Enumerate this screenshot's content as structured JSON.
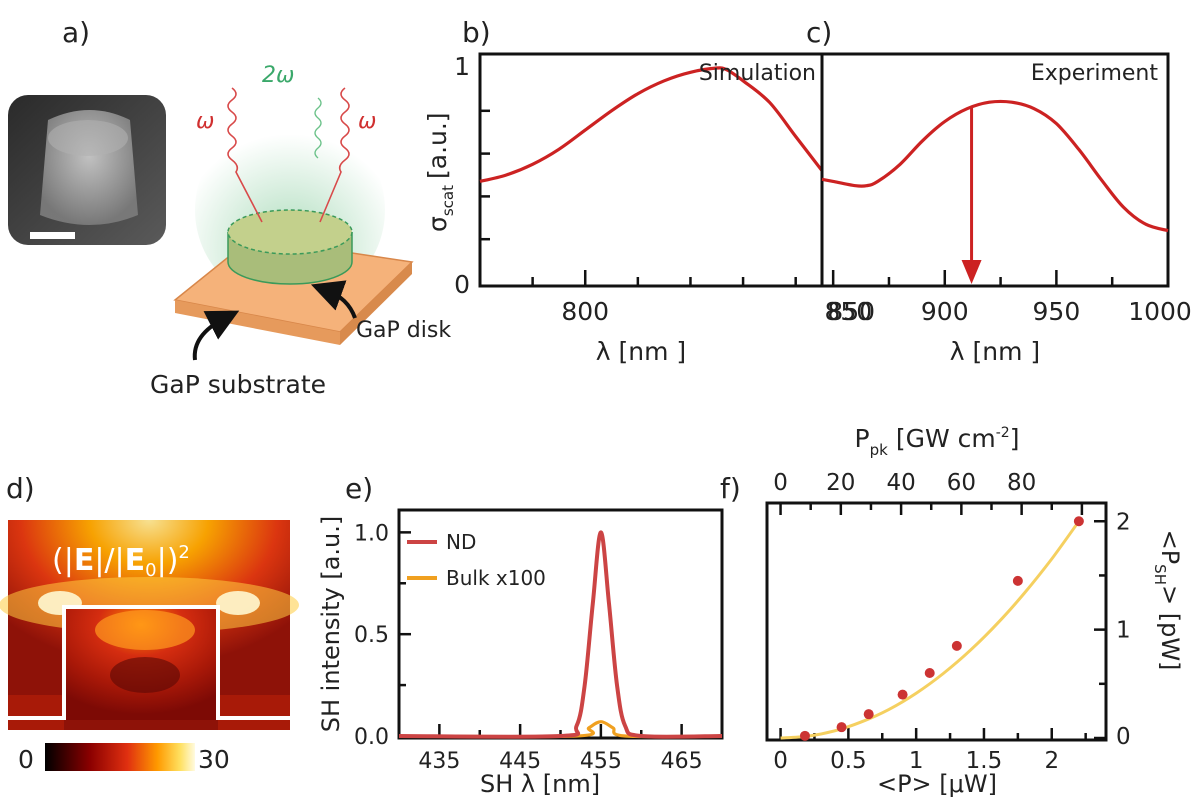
{
  "colors": {
    "curve_red": "#cc2222",
    "nd_line": "#cc4444",
    "bulk_line": "#f0a020",
    "fit_line": "#f5d060",
    "points": "#cc3333",
    "substrate": "#f5b27a",
    "disk": "#b8c98a",
    "glow": "#9ed6b0"
  },
  "panel_a": {
    "label": "a)",
    "omega_left": "ω",
    "omega_center": "2ω",
    "omega_right": "ω",
    "disk_label": "GaP disk",
    "substrate_label": "GaP substrate",
    "icons": [
      "sem-image",
      "disk-schematic"
    ]
  },
  "panel_d": {
    "label": "d)",
    "field_label": "(|E|/|E0|)²",
    "field_label_main": "(|",
    "field_E": "E",
    "field_mid": "|/|",
    "field_E0": "E",
    "field_sub0": "0",
    "field_close": "|)",
    "field_sup": "2",
    "colorbar_min": "0",
    "colorbar_max": "30"
  },
  "chart_data": [
    {
      "id": "b",
      "label": "b)",
      "type": "line",
      "title": "Simulation",
      "xlabel": "λ  [nm ]",
      "ylabel": "σscat [a.u.]",
      "ylabel_main": "σ",
      "ylabel_sub": "scat",
      "ylabel_unit": "[a.u.]",
      "xlim": [
        780,
        845
      ],
      "ylim": [
        0,
        1
      ],
      "xticks": [
        "800",
        "850"
      ],
      "xtick_values": [
        800,
        850
      ],
      "yticks": [
        "0",
        "1"
      ],
      "ytick_values": [
        0,
        1
      ],
      "series": [
        {
          "x": [
            780,
            785,
            790,
            795,
            800,
            805,
            810,
            815,
            820,
            825,
            827,
            830,
            835,
            840,
            845
          ],
          "y": [
            0.47,
            0.5,
            0.55,
            0.62,
            0.71,
            0.8,
            0.88,
            0.94,
            0.98,
            1.0,
            0.99,
            0.94,
            0.84,
            0.68,
            0.52
          ]
        }
      ]
    },
    {
      "id": "c",
      "label": "c)",
      "type": "line",
      "title": "Experiment",
      "xlabel": "λ  [nm ]",
      "xlim": [
        845,
        1000
      ],
      "ylim": [
        0,
        1
      ],
      "xticks": [
        "850",
        "900",
        "950",
        "1000"
      ],
      "xtick_values": [
        850,
        900,
        950,
        1000
      ],
      "arrow_x": 912,
      "series": [
        {
          "x": [
            845,
            850,
            860,
            865,
            870,
            880,
            890,
            900,
            910,
            920,
            930,
            940,
            950,
            960,
            970,
            980,
            990,
            1000
          ],
          "y": [
            0.48,
            0.47,
            0.45,
            0.45,
            0.47,
            0.55,
            0.66,
            0.75,
            0.81,
            0.84,
            0.84,
            0.81,
            0.74,
            0.62,
            0.48,
            0.35,
            0.27,
            0.24
          ]
        }
      ]
    },
    {
      "id": "e",
      "label": "e)",
      "type": "line",
      "xlabel": "SH λ [nm]",
      "ylabel": "SH intensity [a.u.]",
      "xlim": [
        430,
        470
      ],
      "ylim": [
        0,
        1.1
      ],
      "xticks": [
        "435",
        "445",
        "455",
        "465"
      ],
      "xtick_values": [
        435,
        445,
        455,
        465
      ],
      "yticks": [
        "0.0",
        "0.5",
        "1.0"
      ],
      "ytick_values": [
        0,
        0.5,
        1.0
      ],
      "series": [
        {
          "name": "ND",
          "x": [
            430,
            450,
            452,
            453,
            454,
            455,
            456,
            457,
            458,
            460,
            470
          ],
          "y": [
            0,
            0,
            0.05,
            0.25,
            0.65,
            1.0,
            0.65,
            0.25,
            0.05,
            0,
            0
          ]
        },
        {
          "name": "Bulk x100",
          "x": [
            430,
            452,
            453.5,
            455,
            456.5,
            458,
            470
          ],
          "y": [
            0,
            0,
            0.04,
            0.07,
            0.04,
            0,
            0
          ]
        }
      ]
    },
    {
      "id": "f",
      "label": "f)",
      "type": "scatter",
      "xlabel": "<P> [μW]",
      "ylabel": "<PSH> [pW]",
      "ylabel_right_main": "<P",
      "ylabel_right_sub": "SH",
      "ylabel_right_rest": "> [pW]",
      "top_xlabel_main": "P",
      "top_xlabel_sub": "pk",
      "top_xlabel_rest": "[GW cm",
      "top_xlabel_sup": "-2",
      "top_xlabel_close": "]",
      "xlim": [
        -0.1,
        2.4
      ],
      "ylim": [
        0,
        2.15
      ],
      "xticks": [
        "0",
        "0.5",
        "1",
        "1.5",
        "2"
      ],
      "xtick_values": [
        0,
        0.5,
        1,
        1.5,
        2
      ],
      "top_xlim": [
        -4.5,
        108
      ],
      "top_xticks": [
        "0",
        "20",
        "40",
        "60",
        "80"
      ],
      "top_xtick_values": [
        0,
        20,
        40,
        60,
        80
      ],
      "yticks": [
        "0",
        "1",
        "2"
      ],
      "ytick_values": [
        0,
        1,
        2
      ],
      "series": [
        {
          "name": "data",
          "x": [
            0.18,
            0.45,
            0.65,
            0.9,
            1.1,
            1.3,
            1.75,
            2.2
          ],
          "y": [
            0.02,
            0.1,
            0.22,
            0.4,
            0.6,
            0.85,
            1.45,
            2.0
          ]
        },
        {
          "name": "fit",
          "x": [
            0.0,
            0.2,
            0.4,
            0.6,
            0.8,
            1.0,
            1.2,
            1.4,
            1.6,
            1.8,
            2.0,
            2.2
          ],
          "y": [
            0,
            0.017,
            0.066,
            0.15,
            0.264,
            0.413,
            0.595,
            0.81,
            1.058,
            1.339,
            1.653,
            2.0
          ]
        }
      ]
    }
  ]
}
